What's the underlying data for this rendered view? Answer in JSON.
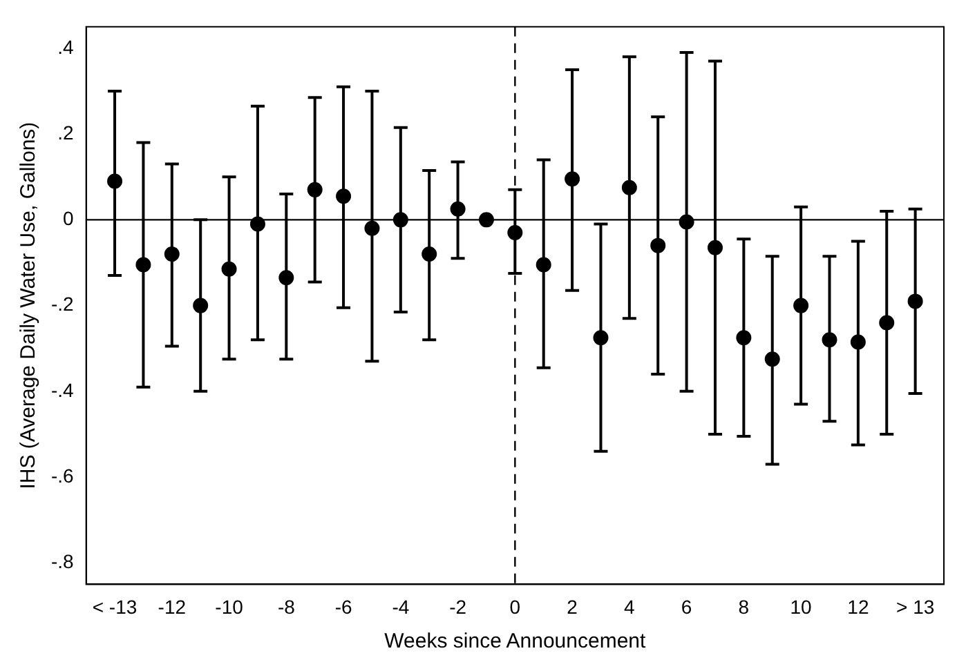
{
  "chart_data": {
    "type": "scatter",
    "xlabel": "Weeks since Announcement",
    "ylabel": "IHS (Average Daily Water Use, Gallons)",
    "x": [
      -14,
      -13,
      -12,
      -11,
      -10,
      -9,
      -8,
      -7,
      -6,
      -5,
      -4,
      -3,
      -2,
      -1,
      0,
      1,
      2,
      3,
      4,
      5,
      6,
      7,
      8,
      9,
      10,
      11,
      12,
      13,
      14
    ],
    "values": [
      0.09,
      -0.105,
      -0.08,
      -0.2,
      -0.115,
      -0.01,
      -0.135,
      0.07,
      0.055,
      -0.02,
      0,
      -0.08,
      0.025,
      0,
      -0.03,
      -0.105,
      0.095,
      -0.275,
      0.075,
      -0.06,
      -0.005,
      -0.065,
      -0.275,
      -0.325,
      -0.2,
      -0.28,
      -0.285,
      -0.24,
      -0.19
    ],
    "errors": [
      [
        -0.13,
        0.3
      ],
      [
        -0.39,
        0.18
      ],
      [
        -0.295,
        0.13
      ],
      [
        -0.4,
        0
      ],
      [
        -0.325,
        0.1
      ],
      [
        -0.28,
        0.265
      ],
      [
        -0.325,
        0.06
      ],
      [
        -0.145,
        0.285
      ],
      [
        -0.205,
        0.31
      ],
      [
        -0.33,
        0.3
      ],
      [
        -0.215,
        0.215
      ],
      [
        -0.28,
        0.115
      ],
      [
        -0.09,
        0.135
      ],
      null,
      [
        -0.125,
        0.07
      ],
      [
        -0.345,
        0.14
      ],
      [
        -0.165,
        0.35
      ],
      [
        -0.54,
        -0.01
      ],
      [
        -0.23,
        0.38
      ],
      [
        -0.36,
        0.24
      ],
      [
        -0.4,
        0.39
      ],
      [
        -0.5,
        0.37
      ],
      [
        -0.505,
        -0.045
      ],
      [
        -0.57,
        -0.085
      ],
      [
        -0.43,
        0.03
      ],
      [
        -0.47,
        -0.085
      ],
      [
        -0.525,
        -0.05
      ],
      [
        -0.5,
        0.02
      ],
      [
        -0.405,
        0.025
      ]
    ],
    "color": "#000000",
    "marker": "circle",
    "grid": false,
    "legend": false,
    "xlim": [
      -15,
      15
    ],
    "xticks": [
      {
        "value": -14,
        "label": "< -13"
      },
      -12,
      -10,
      -8,
      -6,
      -4,
      -2,
      0,
      2,
      4,
      6,
      8,
      10,
      12,
      {
        "value": 14,
        "label": "> 13"
      }
    ],
    "ylim": [
      -0.85,
      0.45
    ],
    "yticks": [
      {
        "value": 0.4,
        "label": ".4"
      },
      {
        "value": 0.2,
        "label": ".2"
      },
      0,
      {
        "value": -0.2,
        "label": "-.2"
      },
      {
        "value": -0.4,
        "label": "-.4"
      },
      {
        "value": -0.6,
        "label": "-.6"
      },
      {
        "value": -0.8,
        "label": "-.8"
      }
    ],
    "ref_lines": [
      {
        "axis": "y",
        "value": 0,
        "color": "#000000",
        "line_style": "solid"
      },
      {
        "axis": "x",
        "value": 0,
        "color": "#000000",
        "line_style": "dashed"
      }
    ]
  }
}
